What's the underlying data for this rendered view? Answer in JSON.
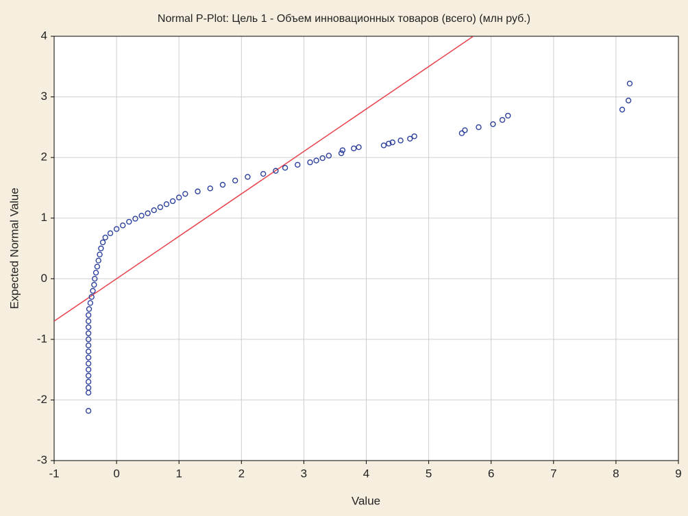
{
  "chart_data": {
    "type": "scatter",
    "title": "Normal P-Plot: Цель 1 - Объем инновационных товаров (всего) (млн руб.)",
    "xlabel": "Value",
    "ylabel": "Expected Normal Value",
    "xlim": [
      -1,
      9
    ],
    "xticks": [
      -1,
      0,
      1,
      2,
      3,
      4,
      5,
      6,
      7,
      8,
      9
    ],
    "ylim": [
      -3,
      4
    ],
    "yticks": [
      -3,
      -2,
      -1,
      0,
      1,
      2,
      3,
      4
    ],
    "grid": true,
    "series": [
      {
        "color": "#2b3f9c",
        "x": [
          -0.45,
          -0.45,
          -0.45,
          -0.45,
          -0.45,
          -0.45,
          -0.45,
          -0.45,
          -0.45,
          -0.45,
          -0.45,
          -0.45,
          -0.45,
          -0.45,
          -0.45,
          -0.44,
          -0.42,
          -0.4,
          -0.38,
          -0.36,
          -0.35,
          -0.33,
          -0.31,
          -0.29,
          -0.27,
          -0.25,
          -0.22,
          -0.18,
          -0.1,
          0,
          0.1,
          0.2,
          0.3,
          0.4,
          0.5,
          0.6,
          0.7,
          0.8,
          0.9,
          1.0,
          1.1,
          1.3,
          1.5,
          1.7,
          1.9,
          2.1,
          2.35,
          2.55,
          2.7,
          2.9,
          3.1,
          3.2,
          3.3,
          3.4,
          3.6,
          3.62,
          3.8,
          3.88,
          4.28,
          4.36,
          4.42,
          4.55,
          4.7,
          4.77,
          5.53,
          5.58,
          5.8,
          6.03,
          6.18,
          6.27,
          8.1,
          8.2,
          8.22
        ],
        "values": [
          -2.18,
          -1.88,
          -1.8,
          -1.7,
          -1.6,
          -1.5,
          -1.4,
          -1.3,
          -1.2,
          -1.1,
          -1.0,
          -0.9,
          -0.8,
          -0.7,
          -0.6,
          -0.5,
          -0.4,
          -0.3,
          -0.2,
          -0.1,
          0,
          0.1,
          0.2,
          0.3,
          0.4,
          0.5,
          0.6,
          0.68,
          0.75,
          0.82,
          0.88,
          0.94,
          0.99,
          1.04,
          1.08,
          1.13,
          1.18,
          1.23,
          1.28,
          1.34,
          1.4,
          1.44,
          1.49,
          1.55,
          1.62,
          1.68,
          1.73,
          1.78,
          1.83,
          1.88,
          1.92,
          1.95,
          1.99,
          2.03,
          2.07,
          2.12,
          2.15,
          2.17,
          2.2,
          2.23,
          2.25,
          2.28,
          2.31,
          2.35,
          2.4,
          2.45,
          2.5,
          2.55,
          2.62,
          2.69,
          2.79,
          2.94,
          3.22
        ]
      }
    ],
    "reference_line": {
      "color": "#e8404a",
      "x": [
        -1,
        5.714
      ],
      "values": [
        -0.7,
        4
      ]
    }
  }
}
